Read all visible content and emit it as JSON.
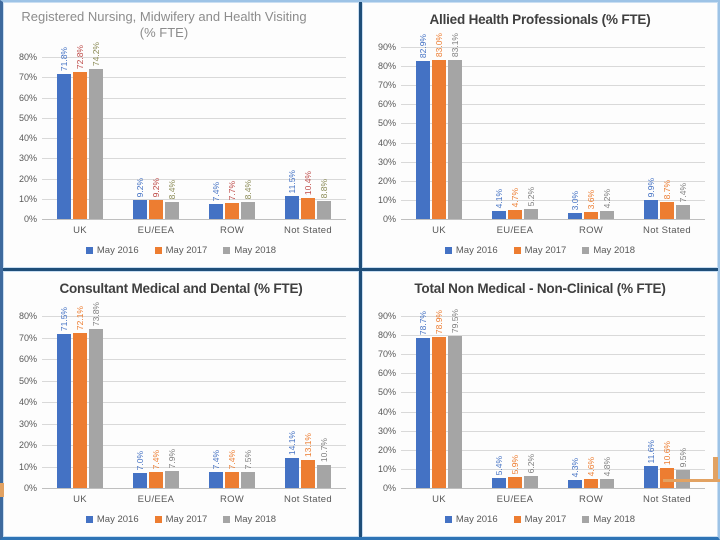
{
  "series_colors": [
    "#4472C4",
    "#ED7D31",
    "#A5A5A5"
  ],
  "axis": {
    "tick_color": "#595959",
    "gridline_color": "#D9D9D9",
    "baseline_color": "#BFBFBF"
  },
  "frame": {
    "divider_color": "#1F4E79",
    "border_top_color": "#9DC3E6",
    "border_left_color": "#3E6A9E",
    "border_right_color": "#9DC3E6",
    "border_bottom_color": "#2E74B5",
    "panel_outline_color": "#C9DEF2",
    "orange_accent_color": "#E2A262"
  },
  "chart_data": [
    {
      "type": "bar",
      "title": "Registered Nursing, Midwifery and Health Visiting (% FTE)",
      "title_color": "#8C8C8C",
      "categories": [
        "UK",
        "EU/EEA",
        "ROW",
        "Not Stated"
      ],
      "series": [
        {
          "name": "May 2016",
          "color": "#4472C4",
          "label_color": "#4472C4",
          "values": [
            71.8,
            9.2,
            7.4,
            11.5
          ]
        },
        {
          "name": "May 2017",
          "color": "#ED7D31",
          "label_color": "#BE4B48",
          "values": [
            72.8,
            9.2,
            7.7,
            10.4
          ]
        },
        {
          "name": "May 2018",
          "color": "#A5A5A5",
          "label_color": "#8A8A54",
          "values": [
            74.2,
            8.4,
            8.4,
            8.8
          ]
        }
      ],
      "ylim": [
        0,
        80
      ],
      "ytick_step": 10,
      "ytick_suffix": "%",
      "value_format": "one_decimal_percent",
      "grid": true,
      "legend_position": "bottom"
    },
    {
      "type": "bar",
      "title": "Allied Health Professionals (% FTE)",
      "title_color": "#3F3F3F",
      "categories": [
        "UK",
        "EU/EEA",
        "ROW",
        "Not Stated"
      ],
      "series": [
        {
          "name": "May 2016",
          "color": "#4472C4",
          "label_color": "#4472C4",
          "values": [
            82.9,
            4.1,
            3.0,
            9.9
          ]
        },
        {
          "name": "May 2017",
          "color": "#ED7D31",
          "label_color": "#ED7D31",
          "values": [
            83.0,
            4.7,
            3.6,
            8.7
          ]
        },
        {
          "name": "May 2018",
          "color": "#A5A5A5",
          "label_color": "#7F7F7F",
          "values": [
            83.1,
            5.2,
            4.2,
            7.4
          ]
        }
      ],
      "ylim": [
        0,
        90
      ],
      "ytick_step": 10,
      "ytick_suffix": "%",
      "value_format": "one_decimal_percent",
      "grid": true,
      "legend_position": "bottom"
    },
    {
      "type": "bar",
      "title": "Consultant Medical and Dental (% FTE)",
      "title_color": "#3F3F3F",
      "categories": [
        "UK",
        "EU/EEA",
        "ROW",
        "Not Stated"
      ],
      "series": [
        {
          "name": "May 2016",
          "color": "#4472C4",
          "label_color": "#4472C4",
          "values": [
            71.5,
            7.0,
            7.4,
            14.1
          ]
        },
        {
          "name": "May 2017",
          "color": "#ED7D31",
          "label_color": "#ED7D31",
          "values": [
            72.1,
            7.4,
            7.4,
            13.1
          ]
        },
        {
          "name": "May 2018",
          "color": "#A5A5A5",
          "label_color": "#7F7F7F",
          "values": [
            73.8,
            7.9,
            7.5,
            10.7
          ]
        }
      ],
      "ylim": [
        0,
        80
      ],
      "ytick_step": 10,
      "ytick_suffix": "%",
      "value_format": "one_decimal_percent",
      "grid": true,
      "legend_position": "bottom"
    },
    {
      "type": "bar",
      "title": "Total Non Medical - Non-Clinical (% FTE)",
      "title_color": "#3F3F3F",
      "categories": [
        "UK",
        "EU/EEA",
        "ROW",
        "Not Stated"
      ],
      "series": [
        {
          "name": "May 2016",
          "color": "#4472C4",
          "label_color": "#4472C4",
          "values": [
            78.7,
            5.4,
            4.3,
            11.6
          ]
        },
        {
          "name": "May 2017",
          "color": "#ED7D31",
          "label_color": "#ED7D31",
          "values": [
            78.9,
            5.9,
            4.6,
            10.6
          ]
        },
        {
          "name": "May 2018",
          "color": "#A5A5A5",
          "label_color": "#7F7F7F",
          "values": [
            79.5,
            6.2,
            4.8,
            9.5
          ]
        }
      ],
      "ylim": [
        0,
        90
      ],
      "ytick_step": 10,
      "ytick_suffix": "%",
      "value_format": "one_decimal_percent",
      "grid": true,
      "legend_position": "bottom"
    }
  ]
}
